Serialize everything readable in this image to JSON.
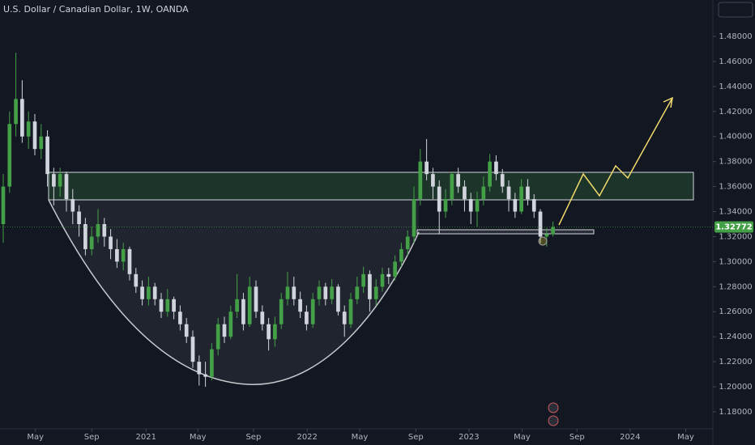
{
  "chart_data": {
    "type": "candlestick",
    "title": "U.S. Dollar / Canadian Dollar, 1W, OANDA",
    "up_color": "#43a047",
    "down_color": "#d1d4dc",
    "grid": false,
    "last_price": 1.32772,
    "ylim": [
      1.1664,
      1.5091
    ],
    "yticks": [
      {
        "value": 1.18,
        "label": "1.18000"
      },
      {
        "value": 1.2,
        "label": "1.20000"
      },
      {
        "value": 1.22,
        "label": "1.22000"
      },
      {
        "value": 1.24,
        "label": "1.24000"
      },
      {
        "value": 1.26,
        "label": "1.26000"
      },
      {
        "value": 1.28,
        "label": "1.28000"
      },
      {
        "value": 1.3,
        "label": "1.30000"
      },
      {
        "value": 1.32,
        "label": "1.32000"
      },
      {
        "value": 1.34,
        "label": "1.34000"
      },
      {
        "value": 1.36,
        "label": "1.36000"
      },
      {
        "value": 1.38,
        "label": "1.38000"
      },
      {
        "value": 1.4,
        "label": "1.40000"
      },
      {
        "value": 1.42,
        "label": "1.42000"
      },
      {
        "value": 1.44,
        "label": "1.44000"
      },
      {
        "value": 1.46,
        "label": "1.46000"
      },
      {
        "value": 1.48,
        "label": "1.48000"
      }
    ],
    "xlim": [
      -0.51,
      112.3
    ],
    "xticks": [
      {
        "value": 5.1,
        "label": "May"
      },
      {
        "value": 14,
        "label": "Sep"
      },
      {
        "value": 22.6,
        "label": "2021"
      },
      {
        "value": 30.8,
        "label": "May"
      },
      {
        "value": 39.6,
        "label": "Sep"
      },
      {
        "value": 48.1,
        "label": "2022"
      },
      {
        "value": 56.4,
        "label": "May"
      },
      {
        "value": 65.3,
        "label": "Sep"
      },
      {
        "value": 73.7,
        "label": "2023"
      },
      {
        "value": 82.1,
        "label": "May"
      },
      {
        "value": 90.8,
        "label": "Sep"
      },
      {
        "value": 99.2,
        "label": "2024"
      },
      {
        "value": 108,
        "label": "May"
      }
    ],
    "ohlc": [
      [
        1.33,
        1.37,
        1.315,
        1.36
      ],
      [
        1.36,
        1.42,
        1.355,
        1.41
      ],
      [
        1.41,
        1.467,
        1.4,
        1.43
      ],
      [
        1.43,
        1.445,
        1.395,
        1.4
      ],
      [
        1.4,
        1.42,
        1.39,
        1.412
      ],
      [
        1.412,
        1.418,
        1.385,
        1.39
      ],
      [
        1.39,
        1.41,
        1.382,
        1.4
      ],
      [
        1.4,
        1.405,
        1.36,
        1.37
      ],
      [
        1.37,
        1.375,
        1.345,
        1.36
      ],
      [
        1.36,
        1.375,
        1.352,
        1.37
      ],
      [
        1.37,
        1.372,
        1.34,
        1.35
      ],
      [
        1.35,
        1.358,
        1.33,
        1.34
      ],
      [
        1.34,
        1.345,
        1.32,
        1.33
      ],
      [
        1.33,
        1.335,
        1.305,
        1.31
      ],
      [
        1.31,
        1.328,
        1.305,
        1.32
      ],
      [
        1.32,
        1.342,
        1.315,
        1.33
      ],
      [
        1.33,
        1.335,
        1.312,
        1.32
      ],
      [
        1.32,
        1.326,
        1.302,
        1.31
      ],
      [
        1.31,
        1.318,
        1.295,
        1.3
      ],
      [
        1.3,
        1.315,
        1.293,
        1.31
      ],
      [
        1.31,
        1.312,
        1.285,
        1.29
      ],
      [
        1.29,
        1.295,
        1.275,
        1.28
      ],
      [
        1.28,
        1.285,
        1.265,
        1.27
      ],
      [
        1.27,
        1.288,
        1.265,
        1.28
      ],
      [
        1.28,
        1.283,
        1.265,
        1.27
      ],
      [
        1.27,
        1.275,
        1.255,
        1.26
      ],
      [
        1.26,
        1.278,
        1.256,
        1.27
      ],
      [
        1.27,
        1.272,
        1.254,
        1.26
      ],
      [
        1.26,
        1.265,
        1.245,
        1.25
      ],
      [
        1.25,
        1.255,
        1.235,
        1.24
      ],
      [
        1.24,
        1.245,
        1.215,
        1.22
      ],
      [
        1.22,
        1.225,
        1.201,
        1.21
      ],
      [
        1.21,
        1.22,
        1.2,
        1.208
      ],
      [
        1.208,
        1.235,
        1.205,
        1.23
      ],
      [
        1.23,
        1.255,
        1.225,
        1.25
      ],
      [
        1.25,
        1.256,
        1.235,
        1.24
      ],
      [
        1.24,
        1.265,
        1.238,
        1.26
      ],
      [
        1.26,
        1.29,
        1.255,
        1.27
      ],
      [
        1.27,
        1.275,
        1.245,
        1.25
      ],
      [
        1.25,
        1.288,
        1.248,
        1.28
      ],
      [
        1.28,
        1.285,
        1.255,
        1.26
      ],
      [
        1.26,
        1.265,
        1.245,
        1.25
      ],
      [
        1.25,
        1.255,
        1.229,
        1.238
      ],
      [
        1.238,
        1.256,
        1.232,
        1.25
      ],
      [
        1.25,
        1.275,
        1.246,
        1.27
      ],
      [
        1.27,
        1.292,
        1.265,
        1.28
      ],
      [
        1.28,
        1.288,
        1.265,
        1.27
      ],
      [
        1.27,
        1.276,
        1.255,
        1.26
      ],
      [
        1.26,
        1.265,
        1.245,
        1.25
      ],
      [
        1.25,
        1.275,
        1.247,
        1.27
      ],
      [
        1.27,
        1.285,
        1.265,
        1.28
      ],
      [
        1.28,
        1.283,
        1.265,
        1.27
      ],
      [
        1.27,
        1.286,
        1.266,
        1.28
      ],
      [
        1.28,
        1.282,
        1.257,
        1.26
      ],
      [
        1.26,
        1.265,
        1.24,
        1.25
      ],
      [
        1.25,
        1.275,
        1.247,
        1.27
      ],
      [
        1.27,
        1.288,
        1.266,
        1.28
      ],
      [
        1.28,
        1.296,
        1.275,
        1.29
      ],
      [
        1.29,
        1.293,
        1.26,
        1.27
      ],
      [
        1.27,
        1.286,
        1.265,
        1.28
      ],
      [
        1.28,
        1.295,
        1.276,
        1.29
      ],
      [
        1.29,
        1.295,
        1.282,
        1.288
      ],
      [
        1.288,
        1.305,
        1.285,
        1.3
      ],
      [
        1.3,
        1.315,
        1.296,
        1.31
      ],
      [
        1.31,
        1.325,
        1.305,
        1.32
      ],
      [
        1.32,
        1.36,
        1.315,
        1.35
      ],
      [
        1.35,
        1.39,
        1.345,
        1.38
      ],
      [
        1.38,
        1.398,
        1.365,
        1.37
      ],
      [
        1.37,
        1.375,
        1.35,
        1.36
      ],
      [
        1.36,
        1.365,
        1.322,
        1.34
      ],
      [
        1.34,
        1.358,
        1.335,
        1.35
      ],
      [
        1.35,
        1.372,
        1.345,
        1.37
      ],
      [
        1.37,
        1.375,
        1.355,
        1.36
      ],
      [
        1.36,
        1.365,
        1.34,
        1.35
      ],
      [
        1.35,
        1.355,
        1.33,
        1.34
      ],
      [
        1.34,
        1.356,
        1.328,
        1.35
      ],
      [
        1.35,
        1.368,
        1.345,
        1.36
      ],
      [
        1.36,
        1.386,
        1.356,
        1.38
      ],
      [
        1.38,
        1.385,
        1.365,
        1.37
      ],
      [
        1.37,
        1.374,
        1.355,
        1.36
      ],
      [
        1.36,
        1.365,
        1.34,
        1.35
      ],
      [
        1.35,
        1.355,
        1.335,
        1.34
      ],
      [
        1.34,
        1.366,
        1.338,
        1.36
      ],
      [
        1.36,
        1.366,
        1.345,
        1.35
      ],
      [
        1.35,
        1.354,
        1.335,
        1.34
      ],
      [
        1.34,
        1.342,
        1.315,
        1.32
      ],
      [
        1.32,
        1.327,
        1.312,
        1.322
      ],
      [
        1.322,
        1.332,
        1.32,
        1.3277
      ]
    ]
  }
}
